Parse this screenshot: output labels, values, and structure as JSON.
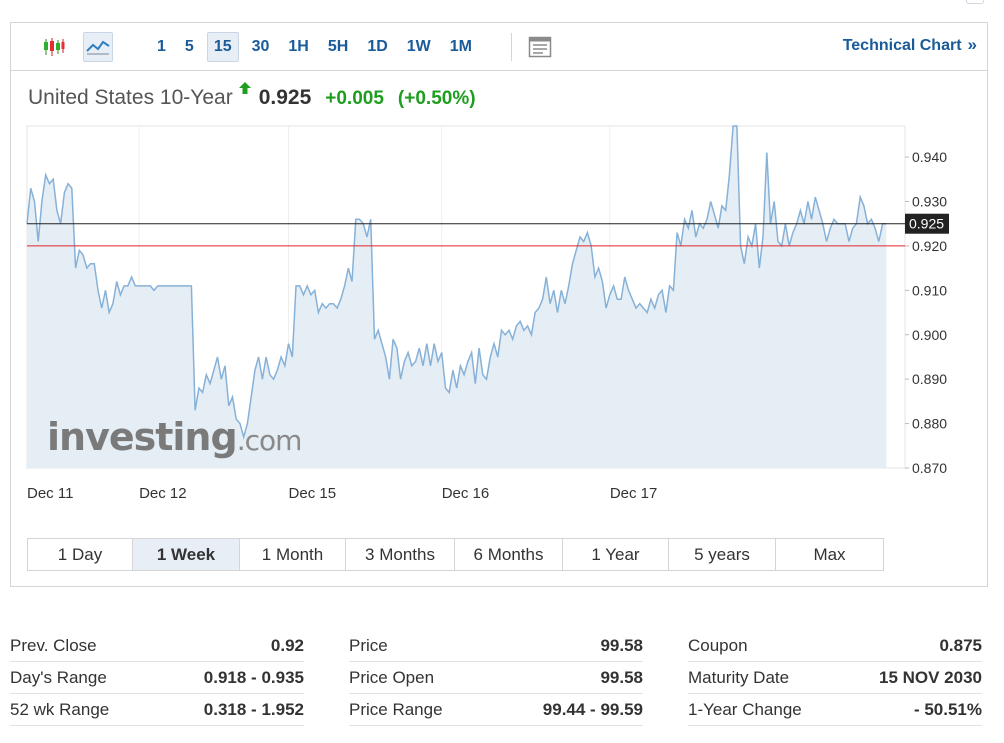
{
  "toolbar": {
    "intervals": [
      "1",
      "5",
      "15",
      "30",
      "1H",
      "5H",
      "1D",
      "1W",
      "1M"
    ],
    "selected_interval": "15",
    "technical_chart_label": "Technical Chart",
    "technical_chart_chevron": "»"
  },
  "quote": {
    "name": "United States 10-Year",
    "last": "0.925",
    "change": "+0.005",
    "change_pct": "(+0.50%)",
    "up_color": "#1e9e1e",
    "arrow_icon": "up-arrow-icon"
  },
  "chart_data": {
    "type": "area",
    "ylim": [
      0.87,
      0.947
    ],
    "yticks": [
      "0.940",
      "0.930",
      "0.920",
      "0.910",
      "0.900",
      "0.890",
      "0.880",
      "0.870"
    ],
    "yticks_values": [
      0.94,
      0.93,
      0.92,
      0.91,
      0.9,
      0.89,
      0.88,
      0.87
    ],
    "xticks": [
      {
        "label": "Dec 11",
        "index": 0
      },
      {
        "label": "Dec 12",
        "index": 30
      },
      {
        "label": "Dec 15",
        "index": 70
      },
      {
        "label": "Dec 16",
        "index": 111
      },
      {
        "label": "Dec 17",
        "index": 156
      }
    ],
    "current_line": {
      "value": 0.925,
      "label": "0.925",
      "color": "#222222"
    },
    "prev_close_line": {
      "value": 0.92,
      "color": "#e0242a"
    },
    "line_color": "#86b1d8",
    "fill_color": "#e5edf5",
    "series": [
      {
        "values": [
          0.925,
          0.933,
          0.93,
          0.921,
          0.93,
          0.936,
          0.934,
          0.935,
          0.928,
          0.925,
          0.932,
          0.934,
          0.933,
          0.915,
          0.919,
          0.918,
          0.915,
          0.916,
          0.916,
          0.91,
          0.906,
          0.91,
          0.905,
          0.907,
          0.912,
          0.909,
          0.911,
          0.911,
          0.913,
          0.911,
          0.911,
          0.911,
          0.911,
          0.911,
          0.91,
          0.911,
          0.911,
          0.911,
          0.911,
          0.911,
          0.911,
          0.911,
          0.911,
          0.911,
          0.911,
          0.883,
          0.888,
          0.887,
          0.891,
          0.889,
          0.892,
          0.895,
          0.89,
          0.893,
          0.884,
          0.886,
          0.881,
          0.88,
          0.877,
          0.88,
          0.886,
          0.892,
          0.895,
          0.89,
          0.895,
          0.891,
          0.89,
          0.892,
          0.895,
          0.893,
          0.898,
          0.895,
          0.911,
          0.911,
          0.909,
          0.911,
          0.909,
          0.91,
          0.905,
          0.907,
          0.906,
          0.907,
          0.907,
          0.906,
          0.908,
          0.911,
          0.915,
          0.912,
          0.926,
          0.926,
          0.925,
          0.922,
          0.926,
          0.899,
          0.901,
          0.898,
          0.895,
          0.89,
          0.899,
          0.897,
          0.89,
          0.894,
          0.896,
          0.893,
          0.894,
          0.897,
          0.893,
          0.898,
          0.893,
          0.898,
          0.894,
          0.896,
          0.888,
          0.887,
          0.892,
          0.888,
          0.893,
          0.891,
          0.894,
          0.896,
          0.889,
          0.897,
          0.891,
          0.89,
          0.895,
          0.898,
          0.895,
          0.901,
          0.9,
          0.901,
          0.899,
          0.902,
          0.903,
          0.901,
          0.902,
          0.9,
          0.905,
          0.906,
          0.908,
          0.913,
          0.907,
          0.91,
          0.905,
          0.91,
          0.907,
          0.911,
          0.916,
          0.919,
          0.922,
          0.921,
          0.923,
          0.92,
          0.913,
          0.915,
          0.912,
          0.906,
          0.909,
          0.911,
          0.908,
          0.908,
          0.913,
          0.91,
          0.908,
          0.906,
          0.907,
          0.906,
          0.905,
          0.908,
          0.906,
          0.909,
          0.91,
          0.905,
          0.911,
          0.91,
          0.923,
          0.92,
          0.926,
          0.924,
          0.928,
          0.922,
          0.925,
          0.924,
          0.926,
          0.93,
          0.927,
          0.924,
          0.929,
          0.928,
          0.936,
          0.947,
          0.947,
          0.92,
          0.916,
          0.922,
          0.92,
          0.925,
          0.915,
          0.922,
          0.941,
          0.925,
          0.93,
          0.921,
          0.92,
          0.925,
          0.92,
          0.923,
          0.925,
          0.928,
          0.925,
          0.93,
          0.926,
          0.931,
          0.928,
          0.925,
          0.921,
          0.924,
          0.926,
          0.925,
          0.925,
          0.925,
          0.921,
          0.924,
          0.925,
          0.931,
          0.929,
          0.925,
          0.926,
          0.924,
          0.921,
          0.925,
          0.925
        ]
      }
    ],
    "x_count": 236
  },
  "watermark": {
    "main": "investing",
    "suffix": ".com"
  },
  "ranges": [
    "1 Day",
    "1 Week",
    "1 Month",
    "3 Months",
    "6 Months",
    "1 Year",
    "5 years",
    "Max"
  ],
  "selected_range": "1 Week",
  "stats": {
    "col1": [
      {
        "label": "Prev. Close",
        "value": "0.92"
      },
      {
        "label": "Day's Range",
        "value": "0.918 - 0.935"
      },
      {
        "label": "52 wk Range",
        "value": "0.318 - 1.952"
      }
    ],
    "col2": [
      {
        "label": "Price",
        "value": "99.58"
      },
      {
        "label": "Price Open",
        "value": "99.58"
      },
      {
        "label": "Price Range",
        "value": "99.44 - 99.59"
      }
    ],
    "col3": [
      {
        "label": "Coupon",
        "value": "0.875"
      },
      {
        "label": "Maturity Date",
        "value": "15 NOV 2030"
      },
      {
        "label": "1-Year Change",
        "value": "- 50.51%"
      }
    ]
  }
}
